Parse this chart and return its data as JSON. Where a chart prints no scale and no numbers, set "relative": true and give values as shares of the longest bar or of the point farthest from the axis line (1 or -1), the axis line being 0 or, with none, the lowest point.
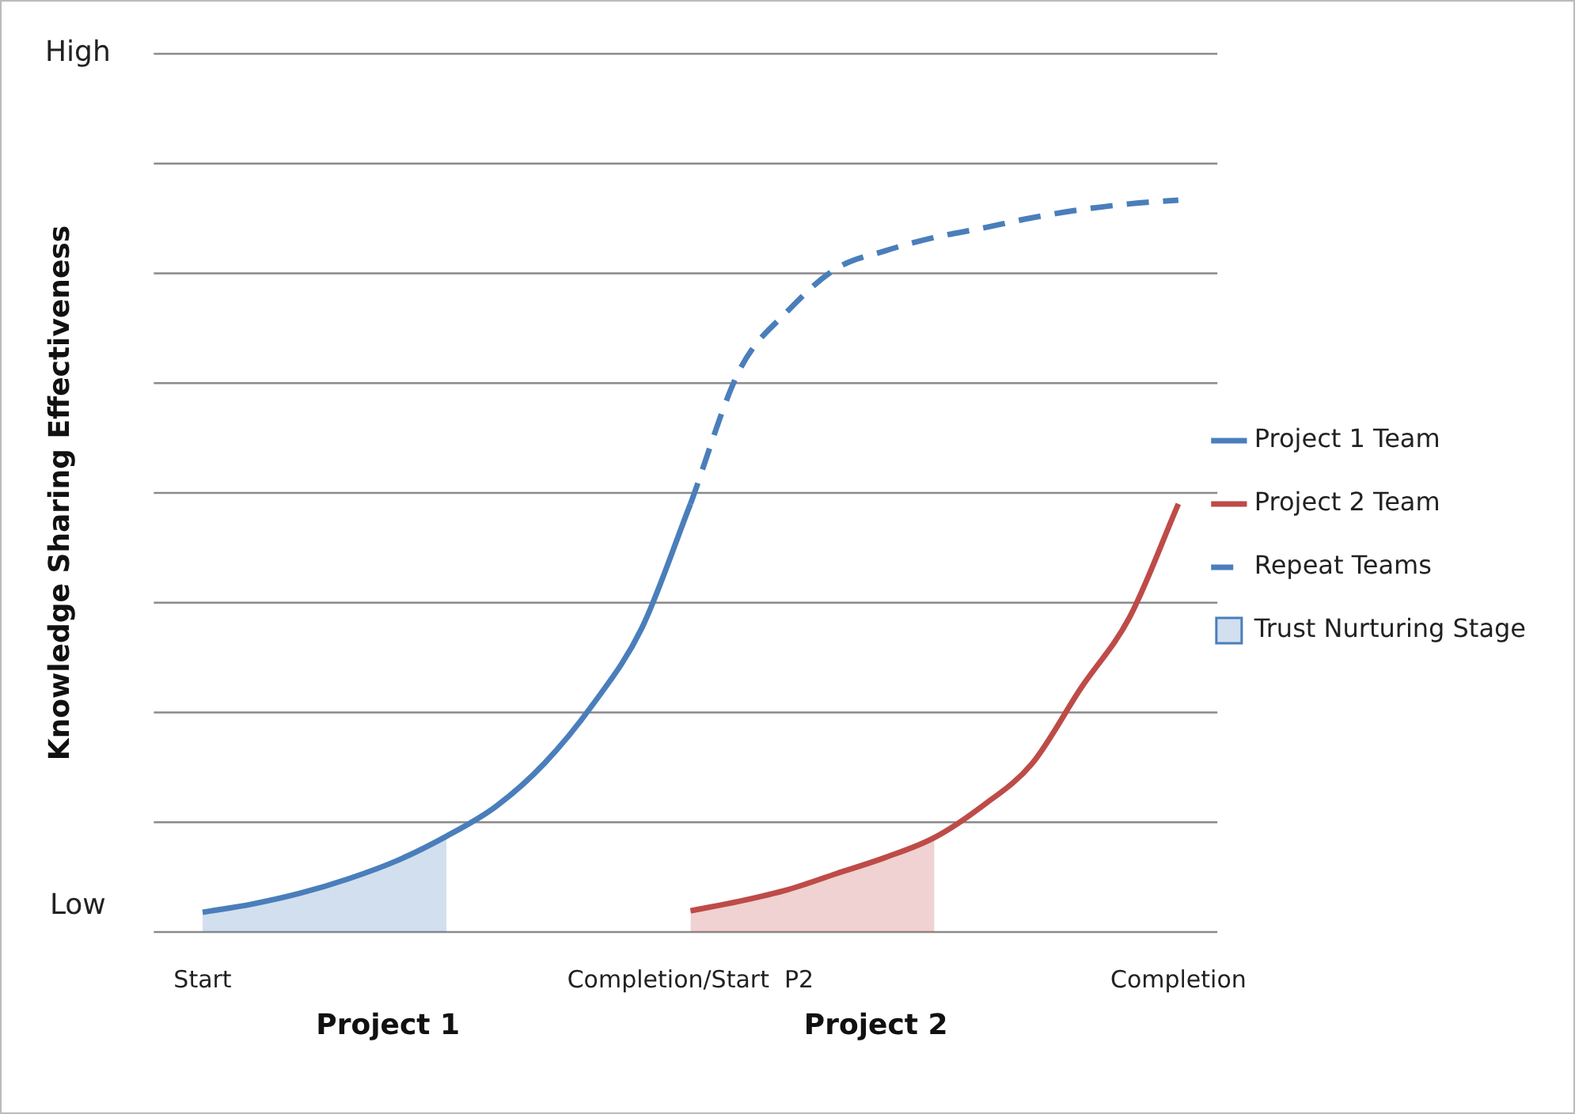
{
  "chart_data": {
    "type": "line",
    "relative": true,
    "ylabel": "Knowledge Sharing Effectiveness",
    "categories": [
      "Start",
      null,
      null,
      null,
      null,
      null,
      null,
      null,
      null,
      null,
      "Completion/Start  P2",
      null,
      null,
      null,
      null,
      null,
      null,
      null,
      null,
      null,
      "Completion"
    ],
    "grid": "y",
    "legend": "right",
    "marker": "none",
    "annotations": [
      "High",
      "Low",
      "Project 1",
      "Project 2"
    ],
    "series": [
      {
        "name": "Project 1 Team",
        "color": "#4a7ebb",
        "values": [
          0.027,
          0.038,
          0.053,
          0.073,
          0.098,
          0.131,
          0.171,
          0.23,
          0.311,
          0.415,
          0.585,
          null,
          null,
          null,
          null,
          null,
          null,
          null,
          null,
          null,
          null
        ]
      },
      {
        "name": "Project 2 Team",
        "color": "#be4b48",
        "values": [
          null,
          null,
          null,
          null,
          null,
          null,
          null,
          null,
          null,
          null,
          0.029,
          0.042,
          0.058,
          0.08,
          0.102,
          0.129,
          0.173,
          0.23,
          0.333,
          0.43,
          0.585
        ]
      },
      {
        "name": "Repeat Teams",
        "color": "#4a7ebb",
        "line_style": "dashed",
        "values": [
          null,
          null,
          null,
          null,
          null,
          null,
          null,
          null,
          null,
          null,
          0.585,
          0.767,
          0.849,
          0.907,
          0.931,
          0.949,
          0.962,
          0.976,
          0.987,
          0.995,
          1
        ]
      },
      {
        "name": "Trust Nurturing Stage",
        "type": "area",
        "color": "#4a7ebb",
        "values": [
          0.027,
          0.038,
          0.053,
          0.073,
          0.098,
          0.131,
          null,
          null,
          null,
          null,
          null,
          null,
          null,
          null,
          null,
          null,
          null,
          null,
          null,
          null,
          null
        ]
      },
      {
        "type": "area",
        "color": "#be4b48",
        "values": [
          null,
          null,
          null,
          null,
          null,
          null,
          null,
          null,
          null,
          null,
          0.029,
          0.042,
          0.058,
          0.08,
          0.102,
          0.129,
          null,
          null,
          null,
          null,
          null
        ]
      }
    ]
  }
}
